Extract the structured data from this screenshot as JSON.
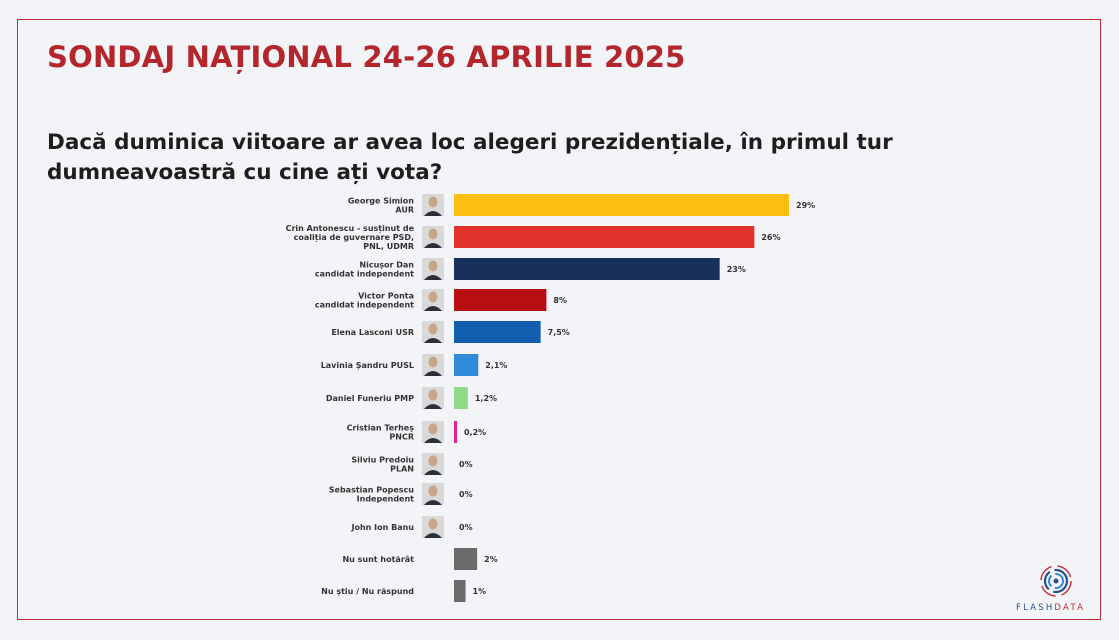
{
  "title": "SONDAJ NAȚIONAL 24-26 APRILIE 2025",
  "question": "Dacă duminica viitoare ar avea loc alegeri prezidențiale, în primul tur dumneavoastră cu cine ați vota?",
  "brand": {
    "part1": "FLASH",
    "part2": "DATA"
  },
  "chart_data": {
    "type": "bar",
    "orientation": "horizontal",
    "title": "",
    "xlabel": "",
    "ylabel": "",
    "xlim": [
      0,
      29
    ],
    "grid": false,
    "legend": "none",
    "categories": [
      [
        "George Simion",
        "AUR"
      ],
      [
        "Crin Antonescu - susținut de",
        "coaliția de guvernare PSD,",
        "PNL, UDMR"
      ],
      [
        "Nicușor Dan",
        "candidat independent"
      ],
      [
        "Victor Ponta",
        "candidat independent"
      ],
      [
        "Elena Lasconi USR"
      ],
      [
        "Lavinia Șandru PUSL"
      ],
      [
        "Daniel Funeriu PMP"
      ],
      [
        "Cristian Terheș",
        "PNCR"
      ],
      [
        "Silviu Predoiu",
        "PLAN"
      ],
      [
        "Sebastian Popescu",
        "Independent"
      ],
      [
        "John Ion Banu"
      ],
      [
        "Nu sunt hotărât"
      ],
      [
        "Nu știu / Nu răspund"
      ]
    ],
    "values": [
      29,
      26,
      23,
      8,
      7.5,
      2.1,
      1.2,
      0.2,
      0,
      0,
      0,
      2,
      1
    ],
    "value_labels": [
      "29%",
      "26%",
      "23%",
      "8%",
      "7,5%",
      "2,1%",
      "1,2%",
      "0,2%",
      "0%",
      "0%",
      "0%",
      "2%",
      "1%"
    ],
    "colors": [
      "#fdbf0f",
      "#e0312b",
      "#17315a",
      "#b80f12",
      "#0f5fae",
      "#2f8ad9",
      "#90dc86",
      "#e8228b",
      "#7f7f7f",
      "#7f7f7f",
      "#7f7f7f",
      "#6b6b6b",
      "#6b6b6b"
    ],
    "photos": [
      true,
      true,
      true,
      true,
      true,
      true,
      true,
      true,
      true,
      true,
      true,
      false,
      false
    ]
  }
}
